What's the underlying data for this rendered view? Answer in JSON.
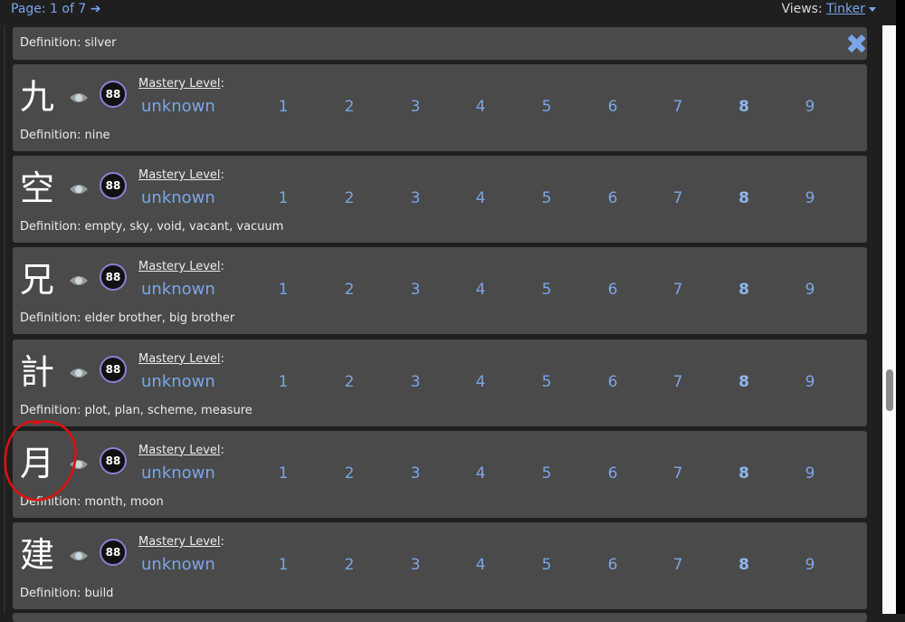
{
  "header": {
    "page_label": "Page: 1 of 7",
    "next_arrow": "➔",
    "views_label": "Views:",
    "views_value": "Tinker"
  },
  "partial_card": {
    "definition": "Definition: silver",
    "close_icon": "✖"
  },
  "mastery_label": "Mastery Level",
  "mastery_colon": ":",
  "level_unknown": "unknown",
  "levels": [
    "1",
    "2",
    "3",
    "4",
    "5",
    "6",
    "7",
    "8",
    "9"
  ],
  "selected_level": "8",
  "cards": [
    {
      "kanji": "九",
      "badge": "88",
      "definition": "Definition: nine"
    },
    {
      "kanji": "空",
      "badge": "88",
      "definition": "Definition: empty, sky, void, vacant, vacuum"
    },
    {
      "kanji": "兄",
      "badge": "88",
      "definition": "Definition: elder brother, big brother"
    },
    {
      "kanji": "計",
      "badge": "88",
      "definition": "Definition: plot, plan, scheme, measure"
    },
    {
      "kanji": "月",
      "badge": "88",
      "definition": "Definition: month, moon"
    },
    {
      "kanji": "建",
      "badge": "88",
      "definition": "Definition: build"
    }
  ],
  "colors": {
    "accent": "#7aa6e8",
    "card_bg": "#4a4a4a",
    "page_bg": "#1f1f1f",
    "annotation": "#e01010",
    "badge_ring": "#8b7fd6"
  }
}
